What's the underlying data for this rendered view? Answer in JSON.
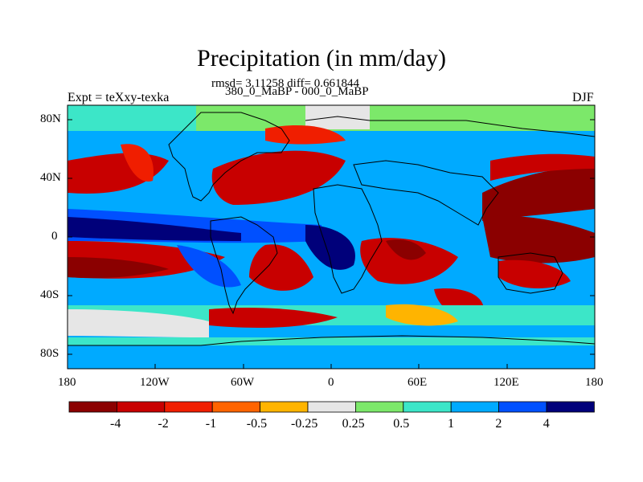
{
  "header": {
    "title": "Precipitation (in mm/day)",
    "stats": "rmsd= 3.11258 diff= 0.661844",
    "subtitle": "380_0_MaBP - 000_0_MaBP",
    "experiment": "Expt = teXxy-texka",
    "season": "DJF"
  },
  "axes": {
    "lat_ticks": [
      "80N",
      "40N",
      "0",
      "40S",
      "80S"
    ],
    "lon_ticks": [
      "180",
      "120W",
      "60W",
      "0",
      "60E",
      "120E",
      "180"
    ]
  },
  "colorbar": {
    "labels": [
      "-4",
      "-2",
      "-1",
      "-0.5",
      "-0.25",
      "0.25",
      "0.5",
      "1",
      "2",
      "4"
    ],
    "colors": [
      "#8b0000",
      "#c80000",
      "#f01e00",
      "#ff6400",
      "#ffb400",
      "#e6e6e6",
      "#7ce86a",
      "#3ce6c8",
      "#00aaff",
      "#0050ff",
      "#00007a"
    ]
  }
}
